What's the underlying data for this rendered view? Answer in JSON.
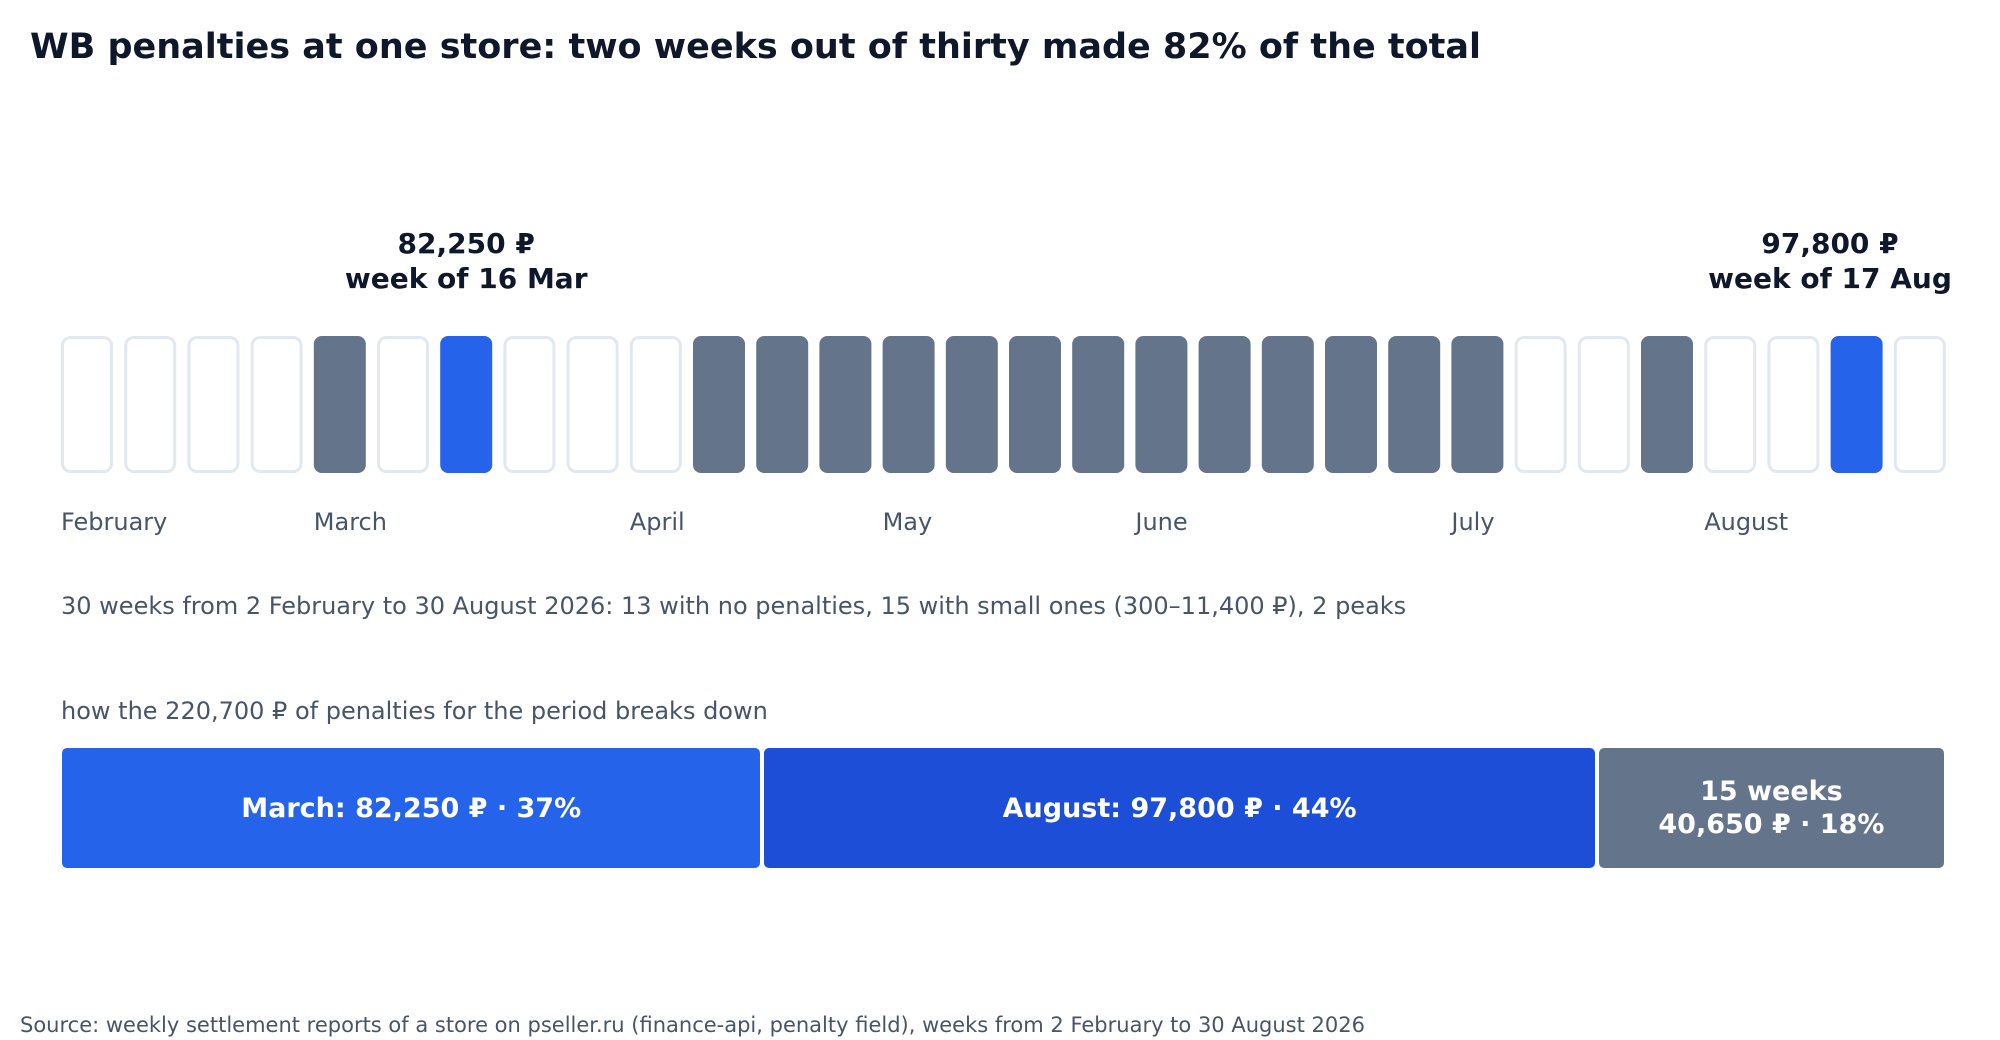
{
  "title": "WB penalties at one store: two weeks out of thirty made 82% of the total",
  "summary": "30 weeks from 2 February to 30 August 2026: 13 with no penalties, 15 with small ones (300–11,400 ₽), 2 peaks",
  "breakdown_title": "how the 220,700 ₽ of penalties for the period breaks down",
  "source": "Source: weekly settlement reports of a store on pseller.ru (finance-api, penalty field), weeks from 2 February to 30 August 2026",
  "colors": {
    "none_fill": "#ffffff",
    "none_stroke": "#e2e8f0",
    "small": "#64748b",
    "peak": "#2563eb",
    "august_segment": "#1d4ed8",
    "text_dark": "#0f172a",
    "text_muted": "#475569"
  },
  "chart_data": [
    {
      "type": "heatmap",
      "description_key": "weekly penalty status",
      "statuses": [
        "none",
        "none",
        "none",
        "none",
        "small",
        "none",
        "peak",
        "none",
        "none",
        "none",
        "small",
        "small",
        "small",
        "small",
        "small",
        "small",
        "small",
        "small",
        "small",
        "small",
        "small",
        "small",
        "small",
        "none",
        "none",
        "small",
        "none",
        "none",
        "peak",
        "none"
      ],
      "month_labels": [
        {
          "label": "February",
          "week_index": 0
        },
        {
          "label": "March",
          "week_index": 4
        },
        {
          "label": "April",
          "week_index": 9
        },
        {
          "label": "May",
          "week_index": 13
        },
        {
          "label": "June",
          "week_index": 17
        },
        {
          "label": "July",
          "week_index": 22
        },
        {
          "label": "August",
          "week_index": 26
        }
      ],
      "peaks": [
        {
          "week_index": 6,
          "value": "82,250 ₽",
          "week": "week of 16 Mar"
        },
        {
          "week_index": 28,
          "value": "97,800 ₽",
          "week": "week of 17 Aug"
        }
      ]
    },
    {
      "type": "bar",
      "stacked": true,
      "total": 220700,
      "segments": [
        {
          "label": "March: 82,250 ₽ · 37%",
          "value": 82250,
          "percent": 37
        },
        {
          "label": "August: 97,800 ₽ · 44%",
          "value": 97800,
          "percent": 44
        },
        {
          "label_line1": "15 weeks",
          "label_line2": "40,650 ₽ · 18%",
          "value": 40650,
          "percent": 18
        }
      ]
    }
  ]
}
